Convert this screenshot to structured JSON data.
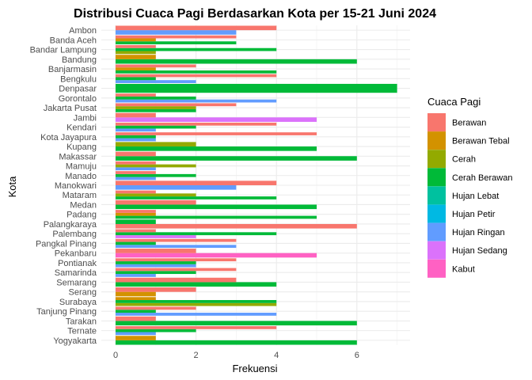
{
  "chart_data": {
    "type": "bar",
    "orientation": "horizontal",
    "title": "Distribusi Cuaca Pagi Berdasarkan Kota per 15-21 Juni 2024",
    "xlabel": "Frekuensi",
    "ylabel": "Kota",
    "xlim": [
      0,
      7.35
    ],
    "x_ticks": [
      0,
      2,
      4,
      6
    ],
    "grid": true,
    "legend_title": "Cuaca Pagi",
    "legend_position": "right",
    "legend": [
      {
        "name": "Berawan",
        "color": "#F8766D"
      },
      {
        "name": "Berawan Tebal",
        "color": "#D39200"
      },
      {
        "name": "Cerah",
        "color": "#93AA00"
      },
      {
        "name": "Cerah Berawan",
        "color": "#00BA38"
      },
      {
        "name": "Hujan Lebat",
        "color": "#00C19F"
      },
      {
        "name": "Hujan Petir",
        "color": "#00B9E3"
      },
      {
        "name": "Hujan Ringan",
        "color": "#619CFF"
      },
      {
        "name": "Hujan Sedang",
        "color": "#DB72FB"
      },
      {
        "name": "Kabut",
        "color": "#FF61C3"
      }
    ],
    "categories": [
      {
        "city": "Yogyakarta",
        "bars": [
          [
            "Cerah Berawan",
            6
          ],
          [
            "Berawan Tebal",
            1
          ]
        ]
      },
      {
        "city": "Ternate",
        "bars": [
          [
            "Hujan Ringan",
            1
          ],
          [
            "Cerah Berawan",
            2
          ],
          [
            "Berawan",
            4
          ]
        ]
      },
      {
        "city": "Tarakan",
        "bars": [
          [
            "Cerah Berawan",
            6
          ],
          [
            "Berawan",
            1
          ]
        ]
      },
      {
        "city": "Tanjung Pinang",
        "bars": [
          [
            "Hujan Ringan",
            4
          ],
          [
            "Cerah Berawan",
            1
          ],
          [
            "Berawan",
            2
          ]
        ]
      },
      {
        "city": "Surabaya",
        "bars": [
          [
            "Cerah",
            4
          ],
          [
            "Cerah Berawan",
            4
          ],
          [
            "Berawan Tebal",
            1
          ]
        ]
      },
      {
        "city": "Serang",
        "bars": [
          [
            "Berawan Tebal",
            1
          ],
          [
            "Berawan",
            2
          ]
        ]
      },
      {
        "city": "Semarang",
        "bars": [
          [
            "Cerah Berawan",
            4
          ],
          [
            "Berawan",
            3
          ]
        ]
      },
      {
        "city": "Samarinda",
        "bars": [
          [
            "Hujan Ringan",
            1
          ],
          [
            "Cerah Berawan",
            2
          ],
          [
            "Berawan",
            3
          ]
        ]
      },
      {
        "city": "Pontianak",
        "bars": [
          [
            "Hujan Ringan",
            2
          ],
          [
            "Cerah Berawan",
            2
          ],
          [
            "Berawan",
            3
          ]
        ]
      },
      {
        "city": "Pekanbaru",
        "bars": [
          [
            "Kabut",
            5
          ],
          [
            "Berawan",
            2
          ]
        ]
      },
      {
        "city": "Pangkal Pinang",
        "bars": [
          [
            "Hujan Ringan",
            3
          ],
          [
            "Cerah Berawan",
            1
          ],
          [
            "Berawan",
            3
          ]
        ]
      },
      {
        "city": "Palembang",
        "bars": [
          [
            "Hujan Sedang",
            2
          ],
          [
            "Cerah Berawan",
            4
          ],
          [
            "Berawan",
            1
          ]
        ]
      },
      {
        "city": "Palangkaraya",
        "bars": [
          [
            "Berawan",
            6
          ],
          [
            "Cerah Berawan",
            1
          ]
        ]
      },
      {
        "city": "Padang",
        "bars": [
          [
            "Cerah Berawan",
            5
          ],
          [
            "Berawan Tebal",
            1
          ],
          [
            "Berawan",
            1
          ]
        ]
      },
      {
        "city": "Medan",
        "bars": [
          [
            "Cerah Berawan",
            5
          ],
          [
            "Berawan",
            2
          ]
        ]
      },
      {
        "city": "Mataram",
        "bars": [
          [
            "Cerah Berawan",
            4
          ],
          [
            "Cerah",
            2
          ],
          [
            "Berawan",
            1
          ]
        ]
      },
      {
        "city": "Manokwari",
        "bars": [
          [
            "Hujan Ringan",
            3
          ],
          [
            "Berawan",
            4
          ]
        ]
      },
      {
        "city": "Manado",
        "bars": [
          [
            "Hujan Ringan",
            1
          ],
          [
            "Cerah Berawan",
            2
          ],
          [
            "Berawan",
            1
          ]
        ]
      },
      {
        "city": "Mamuju",
        "bars": [
          [
            "Hujan Ringan",
            1
          ],
          [
            "Cerah",
            2
          ],
          [
            "Berawan",
            1
          ]
        ]
      },
      {
        "city": "Makassar",
        "bars": [
          [
            "Cerah Berawan",
            6
          ],
          [
            "Berawan",
            1
          ]
        ]
      },
      {
        "city": "Kupang",
        "bars": [
          [
            "Cerah Berawan",
            5
          ],
          [
            "Cerah",
            2
          ]
        ]
      },
      {
        "city": "Kota Jayapura",
        "bars": [
          [
            "Hujan Ringan",
            1
          ],
          [
            "Cerah Berawan",
            1
          ],
          [
            "Berawan",
            5
          ]
        ]
      },
      {
        "city": "Kendari",
        "bars": [
          [
            "Hujan Ringan",
            1
          ],
          [
            "Cerah Berawan",
            2
          ],
          [
            "Berawan",
            4
          ]
        ]
      },
      {
        "city": "Jambi",
        "bars": [
          [
            "Hujan Sedang",
            5
          ],
          [
            "Berawan",
            1
          ]
        ]
      },
      {
        "city": "Jakarta Pusat",
        "bars": [
          [
            "Cerah Berawan",
            2
          ],
          [
            "Cerah",
            2
          ],
          [
            "Berawan",
            3
          ]
        ]
      },
      {
        "city": "Gorontalo",
        "bars": [
          [
            "Hujan Ringan",
            4
          ],
          [
            "Cerah Berawan",
            2
          ],
          [
            "Berawan",
            1
          ]
        ]
      },
      {
        "city": "Denpasar",
        "bars": [
          [
            "Cerah Berawan",
            7
          ]
        ]
      },
      {
        "city": "Bengkulu",
        "bars": [
          [
            "Hujan Ringan",
            2
          ],
          [
            "Cerah Berawan",
            1
          ],
          [
            "Berawan",
            4
          ]
        ]
      },
      {
        "city": "Banjarmasin",
        "bars": [
          [
            "Cerah Berawan",
            4
          ],
          [
            "Berawan Tebal",
            1
          ],
          [
            "Berawan",
            2
          ]
        ]
      },
      {
        "city": "Bandung",
        "bars": [
          [
            "Cerah Berawan",
            6
          ],
          [
            "Berawan Tebal",
            1
          ]
        ]
      },
      {
        "city": "Bandar Lampung",
        "bars": [
          [
            "Cerah",
            1
          ],
          [
            "Cerah Berawan",
            4
          ],
          [
            "Berawan",
            1
          ]
        ]
      },
      {
        "city": "Banda Aceh",
        "bars": [
          [
            "Cerah Berawan",
            3
          ],
          [
            "Berawan Tebal",
            1
          ],
          [
            "Berawan",
            3
          ]
        ]
      },
      {
        "city": "Ambon",
        "bars": [
          [
            "Hujan Ringan",
            3
          ],
          [
            "Berawan",
            4
          ]
        ]
      }
    ]
  }
}
